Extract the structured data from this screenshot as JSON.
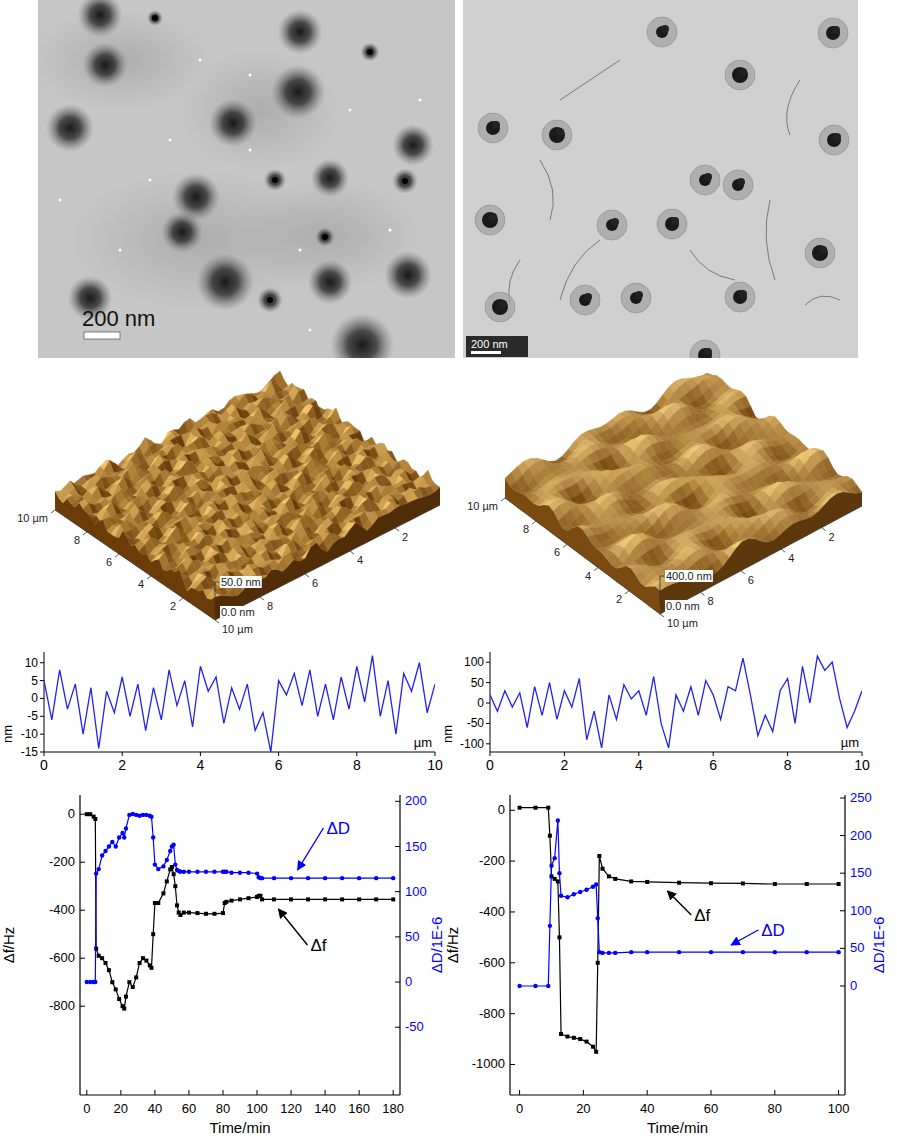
{
  "micrographs": [
    {
      "scale_bar": "200 nm"
    },
    {
      "scale_bar": "200 nm"
    }
  ],
  "afm_surfaces": [
    {
      "xlim": [
        0,
        10
      ],
      "ticks": [
        2,
        4,
        6,
        8,
        {
          "value": 10,
          "label": "10 µm"
        }
      ],
      "zlim": [
        0,
        50
      ],
      "zticks": [
        {
          "value": 0,
          "label": "0.0 nm"
        },
        {
          "value": 50,
          "label": "50.0 nm"
        }
      ]
    },
    {
      "xlim": [
        0,
        10
      ],
      "ticks": [
        2,
        4,
        6,
        8,
        {
          "value": 10,
          "label": "10 µm"
        }
      ],
      "zlim": [
        0,
        400
      ],
      "zticks": [
        {
          "value": 0,
          "label": "0.0 nm"
        },
        {
          "value": 400,
          "label": "400.0 nm"
        }
      ]
    }
  ],
  "chart_data": [
    {
      "type": "line",
      "x": [
        0,
        0.2,
        0.4,
        0.6,
        0.8,
        1,
        1.2,
        1.4,
        1.6,
        1.8,
        2,
        2.2,
        2.4,
        2.6,
        2.8,
        3,
        3.2,
        3.4,
        3.6,
        3.8,
        4,
        4.2,
        4.4,
        4.6,
        4.8,
        5,
        5.2,
        5.4,
        5.6,
        5.8,
        6,
        6.2,
        6.4,
        6.6,
        6.8,
        7,
        7.2,
        7.4,
        7.6,
        7.8,
        8,
        8.2,
        8.4,
        8.6,
        8.8,
        9,
        9.2,
        9.4,
        9.6,
        9.8,
        10
      ],
      "series": [
        {
          "color": "#2222ee",
          "values": [
            5,
            -6,
            8,
            -3,
            4,
            -10,
            3,
            -14,
            2,
            -4,
            6,
            -5,
            4,
            -9,
            3,
            -6,
            8,
            -2,
            5,
            -8,
            9,
            2,
            6,
            -7,
            3,
            -3,
            4,
            -9,
            -4,
            -15,
            5,
            1,
            7,
            -2,
            8,
            -5,
            4,
            -6,
            6,
            -3,
            9,
            -1,
            12,
            -5,
            5,
            -10,
            7,
            2,
            10,
            -4,
            4
          ]
        }
      ],
      "xlim": [
        0,
        10
      ],
      "xticks": [
        0,
        2,
        4,
        6,
        8,
        10
      ],
      "ylim": [
        -15,
        13
      ],
      "yticks": [
        -15,
        -10,
        -5,
        0,
        5,
        10
      ],
      "x_label": "µm",
      "y_label": "nm"
    },
    {
      "type": "line",
      "x": [
        0,
        0.2,
        0.4,
        0.6,
        0.8,
        1,
        1.2,
        1.4,
        1.6,
        1.8,
        2,
        2.2,
        2.4,
        2.6,
        2.8,
        3,
        3.2,
        3.4,
        3.6,
        3.8,
        4,
        4.2,
        4.4,
        4.6,
        4.8,
        5,
        5.2,
        5.4,
        5.6,
        5.8,
        6,
        6.2,
        6.4,
        6.6,
        6.8,
        7,
        7.2,
        7.4,
        7.6,
        7.8,
        8,
        8.2,
        8.4,
        8.6,
        8.8,
        9,
        9.2,
        9.4,
        9.6,
        9.8,
        10
      ],
      "series": [
        {
          "color": "#2222ee",
          "values": [
            20,
            -20,
            30,
            -10,
            25,
            -60,
            40,
            -30,
            50,
            -40,
            30,
            -10,
            60,
            -90,
            -20,
            -110,
            20,
            -40,
            45,
            10,
            30,
            -30,
            65,
            -50,
            -110,
            20,
            -20,
            40,
            -30,
            55,
            20,
            -40,
            40,
            30,
            110,
            20,
            -80,
            -30,
            -70,
            30,
            60,
            -50,
            90,
            0,
            115,
            80,
            100,
            10,
            -60,
            -20,
            30
          ]
        }
      ],
      "xlim": [
        0,
        10
      ],
      "xticks": [
        0,
        2,
        4,
        6,
        8,
        10
      ],
      "ylim": [
        -120,
        125
      ],
      "yticks": [
        -100,
        -50,
        0,
        50,
        100
      ],
      "x_label": "µm",
      "y_label": "nm"
    },
    {
      "type": "line",
      "x": [
        0,
        2,
        4,
        5,
        5.5,
        7,
        9,
        11,
        13,
        15,
        17,
        19,
        21,
        22,
        23,
        25,
        27,
        29,
        31,
        33,
        35,
        37,
        38,
        39,
        40,
        42,
        45,
        47,
        49,
        50,
        51,
        52,
        53,
        54,
        55,
        57,
        60,
        65,
        70,
        75,
        80,
        81,
        82,
        85,
        90,
        95,
        100,
        101,
        102,
        103,
        110,
        120,
        130,
        140,
        150,
        160,
        170,
        180
      ],
      "series": [
        {
          "name": "Δf",
          "color": "#000000",
          "marker": "square",
          "values": [
            0,
            0,
            -10,
            -20,
            -560,
            -590,
            -600,
            -620,
            -650,
            -700,
            -730,
            -770,
            -800,
            -810,
            -760,
            -700,
            -720,
            -680,
            -620,
            -600,
            -610,
            -630,
            -640,
            -500,
            -370,
            -370,
            -330,
            -280,
            -230,
            -220,
            -250,
            -300,
            -380,
            -410,
            -420,
            -410,
            -410,
            -412,
            -415,
            -415,
            -412,
            -370,
            -365,
            -360,
            -355,
            -350,
            -345,
            -340,
            -340,
            -355,
            -355,
            -355,
            -355,
            -355,
            -355,
            -355,
            -355,
            -355
          ]
        },
        {
          "name": "ΔD",
          "color": "#0000ff",
          "marker": "circle",
          "axis": "y2",
          "values": [
            0,
            0,
            0,
            0,
            120,
            125,
            140,
            145,
            150,
            155,
            150,
            160,
            165,
            160,
            170,
            185,
            186,
            185,
            184,
            185,
            185,
            184,
            183,
            160,
            130,
            125,
            128,
            135,
            145,
            150,
            152,
            130,
            124,
            123,
            122,
            122,
            122,
            122,
            122,
            122,
            122,
            122,
            122,
            121,
            121,
            121,
            120,
            116,
            115,
            115,
            115,
            115,
            115,
            115,
            115,
            115,
            115,
            115
          ]
        }
      ],
      "xlim": [
        -4,
        184
      ],
      "xticks": [
        0,
        20,
        40,
        60,
        80,
        100,
        120,
        140,
        160,
        180
      ],
      "ylim": [
        -1170,
        80
      ],
      "yticks": [
        -800,
        -600,
        -400,
        -200,
        0
      ],
      "y2lim": [
        -125,
        207
      ],
      "y2ticks": [
        -50,
        0,
        50,
        100,
        150,
        200
      ],
      "x_label": "Time/min",
      "y_label": "Δf/Hz",
      "y2_label": "ΔD/1E-6"
    },
    {
      "type": "line",
      "x": [
        0,
        5,
        9,
        9.5,
        10,
        11,
        12,
        12.5,
        13,
        15,
        17,
        19,
        21,
        23,
        24,
        24.5,
        25,
        26,
        28,
        30,
        35,
        40,
        50,
        60,
        70,
        80,
        90,
        100
      ],
      "series": [
        {
          "name": "Δf",
          "color": "#000000",
          "marker": "square",
          "values": [
            10,
            10,
            10,
            -100,
            -260,
            -270,
            -280,
            -500,
            -880,
            -890,
            -895,
            -900,
            -910,
            -930,
            -950,
            -600,
            -180,
            -230,
            -260,
            -270,
            -280,
            -282,
            -285,
            -287,
            -288,
            -290,
            -290,
            -290
          ]
        },
        {
          "name": "ΔD",
          "color": "#0000ff",
          "marker": "circle",
          "axis": "y2",
          "values": [
            0,
            0,
            0,
            80,
            160,
            170,
            220,
            150,
            120,
            118,
            122,
            125,
            128,
            132,
            135,
            90,
            45,
            44,
            44,
            44,
            45,
            45,
            45,
            45,
            45,
            45,
            45,
            45
          ]
        }
      ],
      "xlim": [
        -3,
        102
      ],
      "xticks": [
        0,
        20,
        40,
        60,
        80,
        100
      ],
      "ylim": [
        -1120,
        60
      ],
      "yticks": [
        -1000,
        -800,
        -600,
        -400,
        -200,
        0
      ],
      "y2lim": [
        -145,
        254
      ],
      "y2ticks": [
        0,
        50,
        100,
        150,
        200,
        250
      ],
      "x_label": "Time/min",
      "y_label": "Δf/Hz",
      "y2_label": "ΔD/1E-6"
    }
  ]
}
